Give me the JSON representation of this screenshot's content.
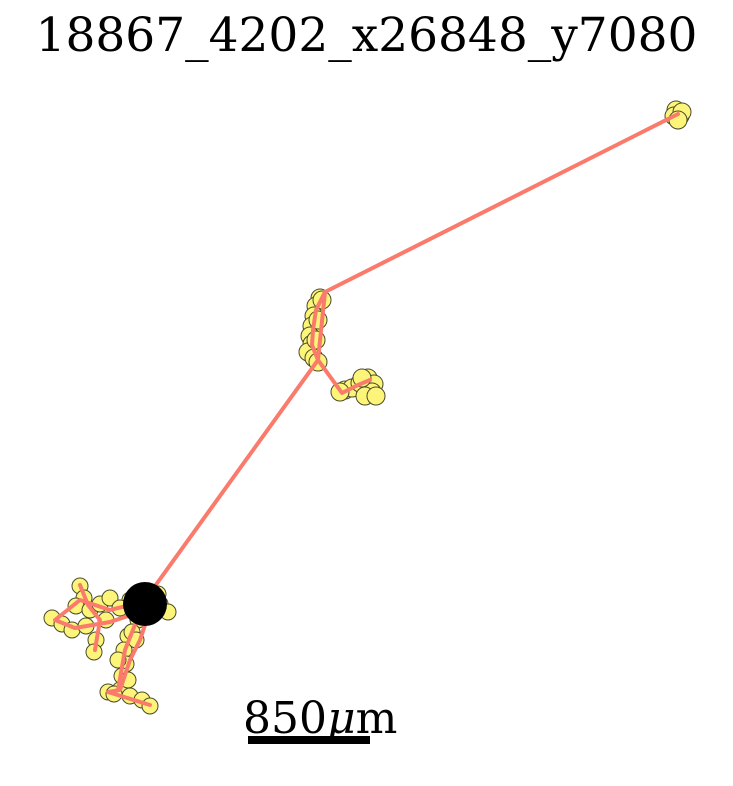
{
  "title": "18867_4202_x26848_y7080",
  "scale_bar": {
    "value": "850",
    "unit_symbol": "μ",
    "unit_suffix": "m"
  },
  "colors": {
    "track_line": "#fa7a6c",
    "marker_fill": "#fcf57a",
    "marker_edge": "#4a4a2a",
    "origin_fill": "#000000",
    "scale_bar": "#000000"
  }
}
